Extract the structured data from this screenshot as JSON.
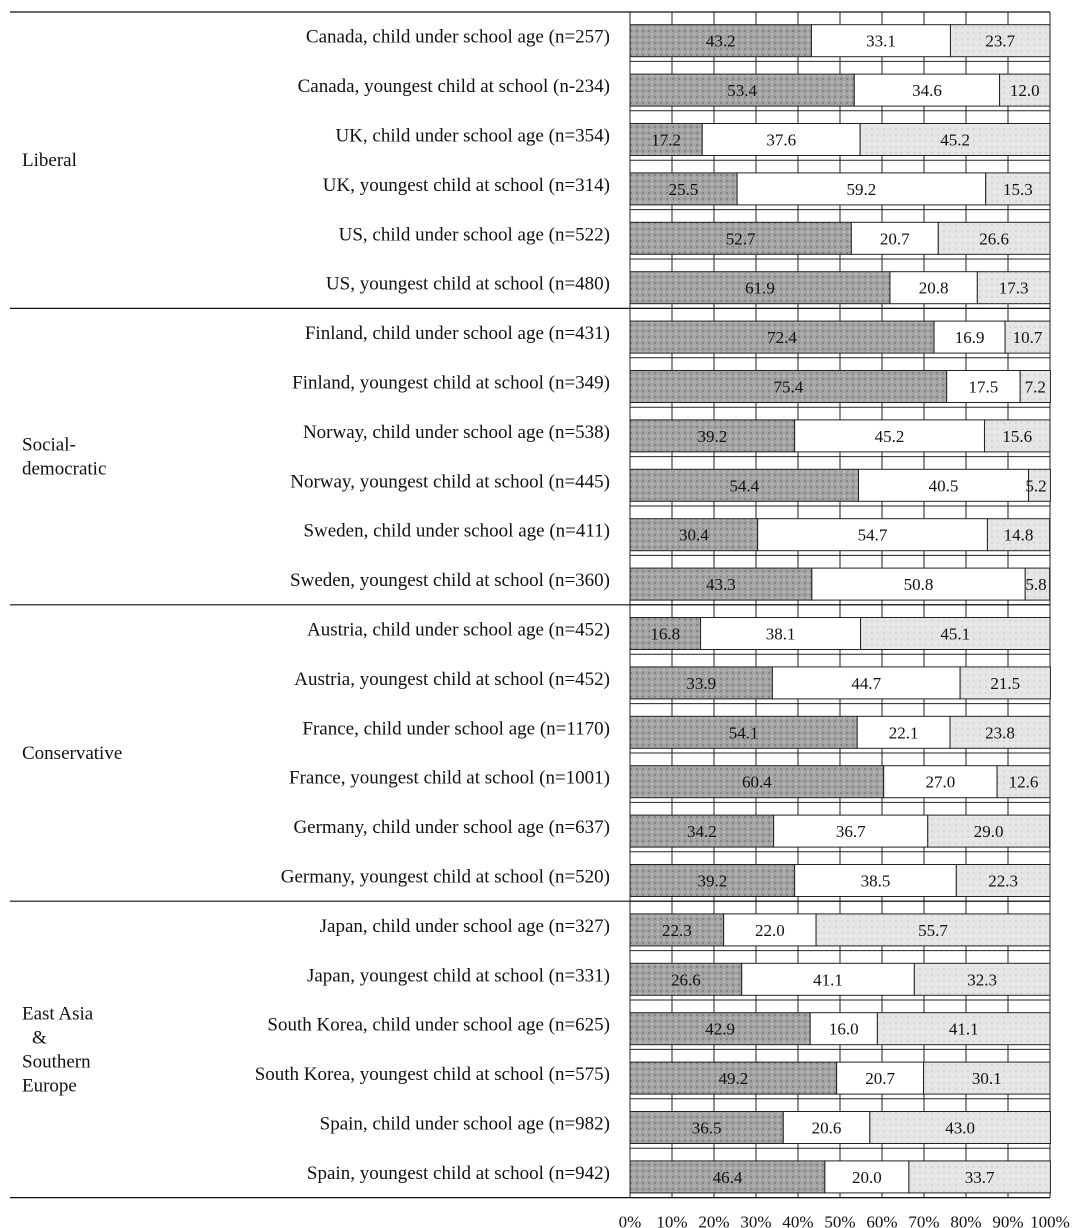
{
  "chart_data": {
    "type": "bar",
    "orientation": "horizontal",
    "stacked": true,
    "xlim": [
      0,
      100
    ],
    "x_ticks": [
      "0%",
      "10%",
      "20%",
      "30%",
      "40%",
      "50%",
      "60%",
      "70%",
      "80%",
      "90%",
      "100%"
    ],
    "legend": null,
    "series_colors": [
      "#a3a3a3",
      "#ffffff",
      "#e6e6e6"
    ],
    "groups": [
      {
        "name": "Liberal",
        "rows": [
          0,
          1,
          2,
          3,
          4,
          5
        ]
      },
      {
        "name": "Social-\ndemocratic",
        "rows": [
          6,
          7,
          8,
          9,
          10,
          11
        ]
      },
      {
        "name": "Conservative",
        "rows": [
          12,
          13,
          14,
          15,
          16,
          17
        ]
      },
      {
        "name": "East Asia\n&\nSouthern\nEurope",
        "rows": [
          18,
          19,
          20,
          21,
          22,
          23
        ]
      }
    ],
    "rows": [
      {
        "label": "Canada, child under school age (n=257)",
        "values": [
          43.2,
          33.1,
          23.7
        ],
        "labels": [
          "43.2",
          "33.1",
          "23.7"
        ]
      },
      {
        "label": "Canada, youngest child at school (n-234)",
        "values": [
          53.4,
          34.6,
          12.0
        ],
        "labels": [
          "53.4",
          "34.6",
          "12.0"
        ]
      },
      {
        "label": "UK, child under school age (n=354)",
        "values": [
          17.2,
          37.6,
          45.2
        ],
        "labels": [
          "17.2",
          "37.6",
          "45.2"
        ]
      },
      {
        "label": "UK, youngest child at school (n=314)",
        "values": [
          25.5,
          59.2,
          15.3
        ],
        "labels": [
          "25.5",
          "59.2",
          "15.3"
        ]
      },
      {
        "label": "US, child under school age (n=522)",
        "values": [
          52.7,
          20.7,
          26.6
        ],
        "labels": [
          "52.7",
          "20.7",
          "26.6"
        ]
      },
      {
        "label": "US, youngest child at school (n=480)",
        "values": [
          61.9,
          20.8,
          17.3
        ],
        "labels": [
          "61.9",
          "20.8",
          "17.3"
        ]
      },
      {
        "label": "Finland, child under school age (n=431)",
        "values": [
          72.4,
          16.9,
          10.7
        ],
        "labels": [
          "72.4",
          "16.9",
          "10.7"
        ]
      },
      {
        "label": "Finland, youngest child at school (n=349)",
        "values": [
          75.4,
          17.5,
          7.2
        ],
        "labels": [
          "75.4",
          "17.5",
          "7.2"
        ]
      },
      {
        "label": "Norway, child under school age (n=538)",
        "values": [
          39.2,
          45.2,
          15.6
        ],
        "labels": [
          "39.2",
          "45.2",
          "15.6"
        ]
      },
      {
        "label": "Norway, youngest child at school (n=445)",
        "values": [
          54.4,
          40.5,
          5.2
        ],
        "labels": [
          "54.4",
          "40.5",
          "5.2"
        ]
      },
      {
        "label": "Sweden, child under school age (n=411)",
        "values": [
          30.4,
          54.7,
          14.8
        ],
        "labels": [
          "30.4",
          "54.7",
          "14.8"
        ]
      },
      {
        "label": "Sweden, youngest child at school (n=360)",
        "values": [
          43.3,
          50.8,
          5.8
        ],
        "labels": [
          "43.3",
          "50.8",
          "5.8"
        ]
      },
      {
        "label": "Austria, child under school age (n=452)",
        "values": [
          16.8,
          38.1,
          45.1
        ],
        "labels": [
          "16.8",
          "38.1",
          "45.1"
        ]
      },
      {
        "label": "Austria, youngest child at school (n=452)",
        "values": [
          33.9,
          44.7,
          21.5
        ],
        "labels": [
          "33.9",
          "44.7",
          "21.5"
        ]
      },
      {
        "label": "France, child under school age (n=1170)",
        "values": [
          54.1,
          22.1,
          23.8
        ],
        "labels": [
          "54.1",
          "22.1",
          "23.8"
        ]
      },
      {
        "label": "France, youngest child at school (n=1001)",
        "values": [
          60.4,
          27.0,
          12.6
        ],
        "labels": [
          "60.4",
          "27.0",
          "12.6"
        ]
      },
      {
        "label": "Germany, child under school age (n=637)",
        "values": [
          34.2,
          36.7,
          29.0
        ],
        "labels": [
          "34.2",
          "36.7",
          "29.0"
        ]
      },
      {
        "label": "Germany, youngest child at school (n=520)",
        "values": [
          39.2,
          38.5,
          22.3
        ],
        "labels": [
          "39.2",
          "38.5",
          "22.3"
        ]
      },
      {
        "label": "Japan, child under school age (n=327)",
        "values": [
          22.3,
          22.0,
          55.7
        ],
        "labels": [
          "22.3",
          "22.0",
          "55.7"
        ]
      },
      {
        "label": "Japan, youngest child at school (n=331)",
        "values": [
          26.6,
          41.1,
          32.3
        ],
        "labels": [
          "26.6",
          "41.1",
          "32.3"
        ]
      },
      {
        "label": "South Korea, child under school age (n=625)",
        "values": [
          42.9,
          16.0,
          41.1
        ],
        "labels": [
          "42.9",
          "16.0",
          "41.1"
        ]
      },
      {
        "label": "South Korea, youngest child at school (n=575)",
        "values": [
          49.2,
          20.7,
          30.1
        ],
        "labels": [
          "49.2",
          "20.7",
          "30.1"
        ]
      },
      {
        "label": "Spain, child under school age (n=982)",
        "values": [
          36.5,
          20.6,
          43.0
        ],
        "labels": [
          "36.5",
          "20.6",
          "43.0"
        ]
      },
      {
        "label": "Spain, youngest child at school (n=942)",
        "values": [
          46.4,
          20.0,
          33.7
        ],
        "labels": [
          "46.4",
          "20.0",
          "33.7"
        ]
      }
    ]
  }
}
